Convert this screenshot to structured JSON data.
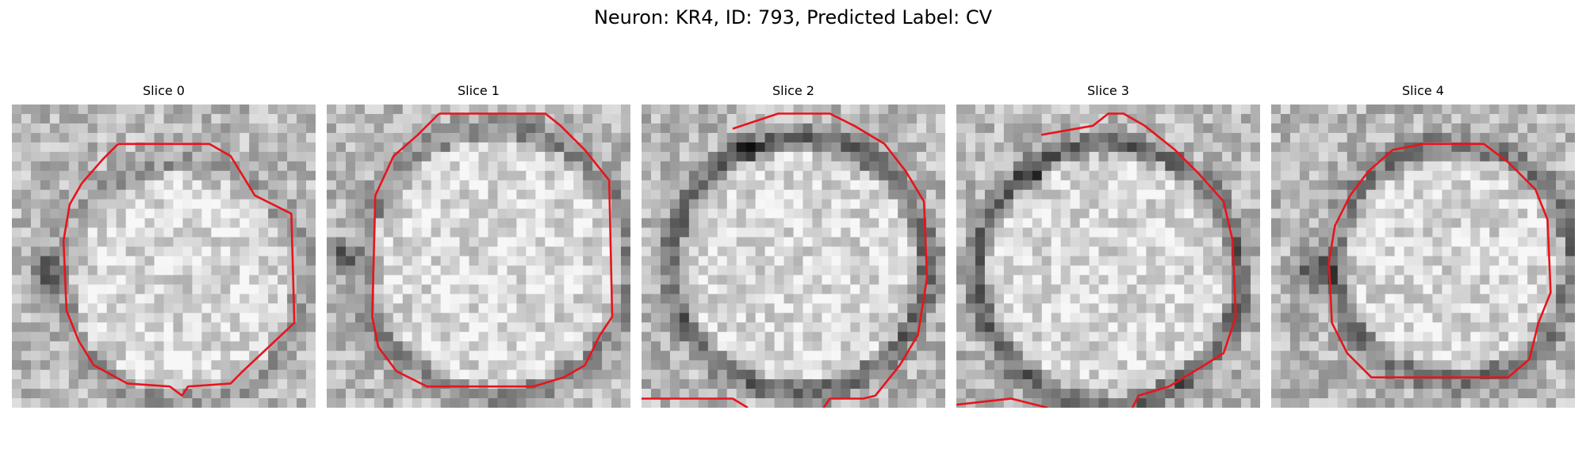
{
  "title": "Neuron: KR4, ID: 793, Predicted Label: CV",
  "colors": {
    "background": "#ffffff",
    "contour": "#e8141c",
    "image_colormap": "grayscale"
  },
  "panels": [
    {
      "label": "Slice 0"
    },
    {
      "label": "Slice 1"
    },
    {
      "label": "Slice 2"
    },
    {
      "label": "Slice 3"
    },
    {
      "label": "Slice 4"
    }
  ]
}
